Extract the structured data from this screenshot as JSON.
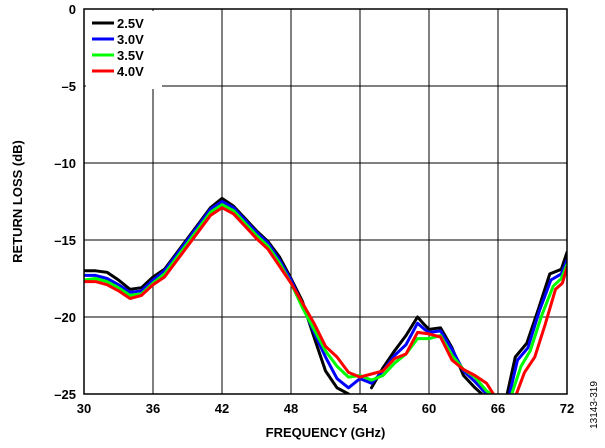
{
  "figure_id": "13143-319",
  "chart_data": {
    "type": "line",
    "title": "",
    "xlabel": "FREQUENCY (GHz)",
    "ylabel": "RETURN LOSS (dB)",
    "xlim": [
      30,
      72
    ],
    "ylim": [
      -25,
      0
    ],
    "xticks": [
      30,
      36,
      42,
      48,
      54,
      60,
      66,
      72
    ],
    "yticks": [
      0,
      -5,
      -10,
      -15,
      -20,
      -25
    ],
    "xtick_labels": [
      "30",
      "36",
      "42",
      "48",
      "54",
      "60",
      "66",
      "72"
    ],
    "ytick_labels": [
      "0",
      "–5",
      "–10",
      "–15",
      "–20",
      "–25"
    ],
    "grid": true,
    "legend_position": "top-left",
    "series": [
      {
        "name": "2.5V",
        "color": "#000000",
        "segments": [
          [
            [
              30,
              -17.0
            ],
            [
              31,
              -17.0
            ],
            [
              32,
              -17.1
            ],
            [
              33,
              -17.6
            ],
            [
              34,
              -18.2
            ],
            [
              35,
              -18.1
            ],
            [
              36,
              -17.4
            ],
            [
              37,
              -16.9
            ],
            [
              38,
              -15.9
            ],
            [
              39,
              -14.9
            ],
            [
              40,
              -13.9
            ],
            [
              41,
              -12.9
            ],
            [
              42,
              -12.3
            ],
            [
              43,
              -12.8
            ],
            [
              44,
              -13.6
            ],
            [
              45,
              -14.4
            ],
            [
              46,
              -15.1
            ],
            [
              47,
              -16.1
            ],
            [
              48,
              -17.5
            ],
            [
              49,
              -19.0
            ],
            [
              50,
              -21.3
            ],
            [
              51,
              -23.5
            ],
            [
              52,
              -24.6
            ],
            [
              53,
              -25.0
            ]
          ],
          [
            [
              55,
              -24.6
            ],
            [
              56,
              -23.3
            ],
            [
              57,
              -22.2
            ],
            [
              58,
              -21.2
            ],
            [
              59,
              -20.0
            ],
            [
              59.6,
              -20.5
            ],
            [
              60,
              -20.8
            ],
            [
              61,
              -20.7
            ],
            [
              62,
              -22.0
            ],
            [
              63,
              -23.8
            ],
            [
              64,
              -24.6
            ],
            [
              64.6,
              -25.0
            ]
          ],
          [
            [
              66.8,
              -25.0
            ],
            [
              67.5,
              -22.6
            ],
            [
              68.5,
              -21.7
            ],
            [
              69.5,
              -19.5
            ],
            [
              70.5,
              -17.2
            ],
            [
              71.5,
              -16.9
            ],
            [
              72,
              -15.8
            ]
          ]
        ]
      },
      {
        "name": "3.0V",
        "color": "#0000ff",
        "segments": [
          [
            [
              30,
              -17.3
            ],
            [
              31,
              -17.3
            ],
            [
              32,
              -17.5
            ],
            [
              33,
              -17.9
            ],
            [
              34,
              -18.4
            ],
            [
              35,
              -18.3
            ],
            [
              36,
              -17.6
            ],
            [
              37,
              -17.0
            ],
            [
              38,
              -16.0
            ],
            [
              39,
              -15.0
            ],
            [
              40,
              -14.0
            ],
            [
              41,
              -13.0
            ],
            [
              42,
              -12.5
            ],
            [
              43,
              -12.9
            ],
            [
              44,
              -13.7
            ],
            [
              45,
              -14.5
            ],
            [
              46,
              -15.2
            ],
            [
              47,
              -16.3
            ],
            [
              48,
              -17.6
            ],
            [
              49,
              -19.2
            ],
            [
              50,
              -21.0
            ],
            [
              51,
              -22.6
            ],
            [
              52,
              -24.0
            ],
            [
              53,
              -24.6
            ],
            [
              54,
              -24.0
            ],
            [
              55,
              -24.3
            ],
            [
              56,
              -23.5
            ],
            [
              57,
              -22.5
            ],
            [
              58,
              -21.8
            ],
            [
              59,
              -20.4
            ],
            [
              59.6,
              -20.8
            ],
            [
              60,
              -21.0
            ],
            [
              61,
              -20.9
            ],
            [
              62,
              -22.1
            ],
            [
              63,
              -23.5
            ],
            [
              64,
              -24.2
            ],
            [
              65,
              -25.0
            ]
          ],
          [
            [
              67.0,
              -25.0
            ],
            [
              67.7,
              -22.8
            ],
            [
              68.6,
              -22.0
            ],
            [
              69.6,
              -19.6
            ],
            [
              70.6,
              -17.6
            ],
            [
              71.5,
              -17.2
            ],
            [
              72,
              -16.3
            ]
          ]
        ]
      },
      {
        "name": "3.5V",
        "color": "#00ff00",
        "segments": [
          [
            [
              30,
              -17.6
            ],
            [
              31,
              -17.5
            ],
            [
              32,
              -17.7
            ],
            [
              33,
              -18.1
            ],
            [
              34,
              -18.6
            ],
            [
              35,
              -18.5
            ],
            [
              36,
              -17.8
            ],
            [
              37,
              -17.2
            ],
            [
              38,
              -16.2
            ],
            [
              39,
              -15.2
            ],
            [
              40,
              -14.2
            ],
            [
              41,
              -13.2
            ],
            [
              42,
              -12.7
            ],
            [
              43,
              -13.1
            ],
            [
              44,
              -13.9
            ],
            [
              45,
              -14.7
            ],
            [
              46,
              -15.4
            ],
            [
              47,
              -16.5
            ],
            [
              48,
              -17.8
            ],
            [
              49,
              -19.4
            ],
            [
              50,
              -20.8
            ],
            [
              51,
              -22.2
            ],
            [
              52,
              -23.2
            ],
            [
              53,
              -23.9
            ],
            [
              54,
              -23.8
            ],
            [
              55,
              -24.1
            ],
            [
              56,
              -23.8
            ],
            [
              57,
              -23.0
            ],
            [
              58,
              -22.4
            ],
            [
              59,
              -21.4
            ],
            [
              60,
              -21.4
            ],
            [
              61,
              -21.2
            ],
            [
              62,
              -22.5
            ],
            [
              63,
              -23.4
            ],
            [
              64,
              -23.9
            ],
            [
              65,
              -24.8
            ],
            [
              65.4,
              -25.0
            ]
          ],
          [
            [
              67.2,
              -25.0
            ],
            [
              68.0,
              -23.2
            ],
            [
              68.8,
              -22.2
            ],
            [
              69.8,
              -19.9
            ],
            [
              70.8,
              -18.0
            ],
            [
              71.5,
              -17.5
            ],
            [
              72,
              -16.6
            ]
          ]
        ]
      },
      {
        "name": "4.0V",
        "color": "#ff0000",
        "segments": [
          [
            [
              30,
              -17.7
            ],
            [
              31,
              -17.7
            ],
            [
              32,
              -17.9
            ],
            [
              33,
              -18.3
            ],
            [
              34,
              -18.8
            ],
            [
              35,
              -18.6
            ],
            [
              36,
              -17.9
            ],
            [
              37,
              -17.4
            ],
            [
              38,
              -16.4
            ],
            [
              39,
              -15.4
            ],
            [
              40,
              -14.4
            ],
            [
              41,
              -13.4
            ],
            [
              42,
              -12.9
            ],
            [
              43,
              -13.3
            ],
            [
              44,
              -14.1
            ],
            [
              45,
              -14.9
            ],
            [
              46,
              -15.6
            ],
            [
              47,
              -16.7
            ],
            [
              48,
              -17.8
            ],
            [
              49,
              -19.1
            ],
            [
              50,
              -20.4
            ],
            [
              51,
              -21.9
            ],
            [
              52,
              -22.6
            ],
            [
              53,
              -23.6
            ],
            [
              54,
              -23.9
            ],
            [
              55,
              -23.7
            ],
            [
              56,
              -23.5
            ],
            [
              57,
              -22.7
            ],
            [
              58,
              -22.4
            ],
            [
              59,
              -21.0
            ],
            [
              60,
              -21.1
            ],
            [
              61,
              -21.3
            ],
            [
              62,
              -22.8
            ],
            [
              63,
              -23.4
            ],
            [
              64,
              -23.8
            ],
            [
              65,
              -24.3
            ],
            [
              65.6,
              -25.0
            ]
          ],
          [
            [
              67.6,
              -25.0
            ],
            [
              68.3,
              -23.6
            ],
            [
              69.2,
              -22.6
            ],
            [
              70.1,
              -20.5
            ],
            [
              71.0,
              -18.2
            ],
            [
              71.6,
              -17.8
            ],
            [
              72,
              -16.8
            ]
          ]
        ]
      }
    ]
  }
}
